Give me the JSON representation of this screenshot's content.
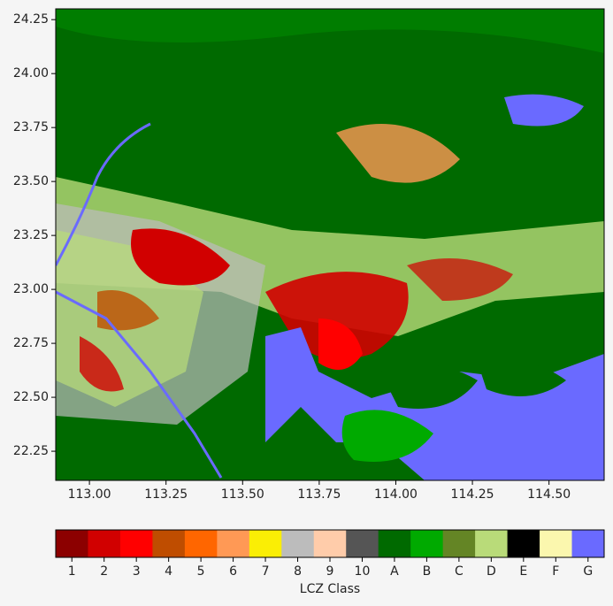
{
  "map": {
    "xlim": [
      112.89,
      114.68
    ],
    "ylim": [
      22.115,
      24.3
    ],
    "xticks": [
      {
        "value": 113.0,
        "label": "113.00"
      },
      {
        "value": 113.25,
        "label": "113.25"
      },
      {
        "value": 113.5,
        "label": "113.50"
      },
      {
        "value": 113.75,
        "label": "113.75"
      },
      {
        "value": 114.0,
        "label": "114.00"
      },
      {
        "value": 114.25,
        "label": "114.25"
      },
      {
        "value": 114.5,
        "label": "114.50"
      }
    ],
    "yticks": [
      {
        "value": 22.25,
        "label": "22.25"
      },
      {
        "value": 22.5,
        "label": "22.50"
      },
      {
        "value": 22.75,
        "label": "22.75"
      },
      {
        "value": 23.0,
        "label": "23.00"
      },
      {
        "value": 23.25,
        "label": "23.25"
      },
      {
        "value": 23.5,
        "label": "23.50"
      },
      {
        "value": 23.75,
        "label": "23.75"
      },
      {
        "value": 24.0,
        "label": "24.00"
      },
      {
        "value": 24.25,
        "label": "24.25"
      }
    ],
    "colorbar": {
      "label": "LCZ Class",
      "classes": [
        {
          "label": "1",
          "color": "#8c0000"
        },
        {
          "label": "2",
          "color": "#d10000"
        },
        {
          "label": "3",
          "color": "#ff0000"
        },
        {
          "label": "4",
          "color": "#bf4d00"
        },
        {
          "label": "5",
          "color": "#ff6600"
        },
        {
          "label": "6",
          "color": "#ff9955"
        },
        {
          "label": "7",
          "color": "#faee05"
        },
        {
          "label": "8",
          "color": "#bcbcbc"
        },
        {
          "label": "9",
          "color": "#ffccaa"
        },
        {
          "label": "10",
          "color": "#555555"
        },
        {
          "label": "A",
          "color": "#006a00"
        },
        {
          "label": "B",
          "color": "#00aa00"
        },
        {
          "label": "C",
          "color": "#648525"
        },
        {
          "label": "D",
          "color": "#b9db79"
        },
        {
          "label": "E",
          "color": "#000000"
        },
        {
          "label": "F",
          "color": "#fbf7ae"
        },
        {
          "label": "G",
          "color": "#6a6aff"
        }
      ]
    }
  }
}
